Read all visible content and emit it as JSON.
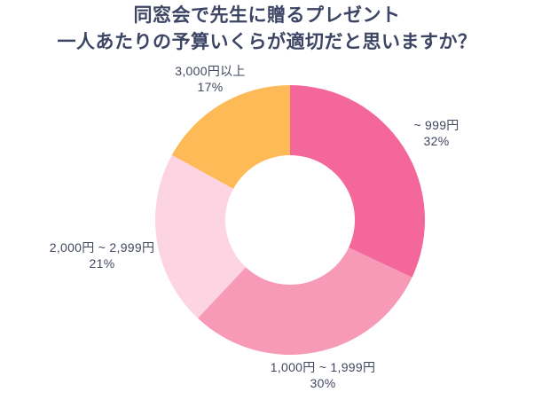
{
  "title": {
    "line1": "同窓会で先生に贈るプレゼント",
    "line2": "一人あたりの予算いくらが適切だと思いますか？",
    "color": "#3D4565"
  },
  "chart_data": {
    "type": "pie",
    "subtype": "donut",
    "title": "同窓会で先生に贈るプレゼント 一人あたりの予算いくらが適切だと思いますか？",
    "unit": "%",
    "start_angle_deg": 0,
    "direction": "clockwise",
    "inner_radius_ratio": 0.48,
    "legend": "none",
    "background": "#ffffff",
    "categories": [
      "~ 999円",
      "1,000円 ~ 1,999円",
      "2,000円 ~ 2,999円",
      "3,000円以上"
    ],
    "values": [
      32,
      30,
      21,
      17
    ],
    "segments": [
      {
        "id": "under-999",
        "label": "~ 999円",
        "value": 32,
        "pct_label": "32%",
        "color": "#F4679B",
        "label_position": "right"
      },
      {
        "id": "1000-1999",
        "label": "1,000円 ~ 1,999円",
        "value": 30,
        "pct_label": "30%",
        "color": "#F79AB8",
        "label_position": "bottom"
      },
      {
        "id": "2000-2999",
        "label": "2,000円 ~ 2,999円",
        "value": 21,
        "pct_label": "21%",
        "color": "#FDD5E2",
        "label_position": "left"
      },
      {
        "id": "3000-plus",
        "label": "3,000円以上",
        "value": 17,
        "pct_label": "17%",
        "color": "#FDBA57",
        "label_position": "top-left"
      }
    ]
  }
}
